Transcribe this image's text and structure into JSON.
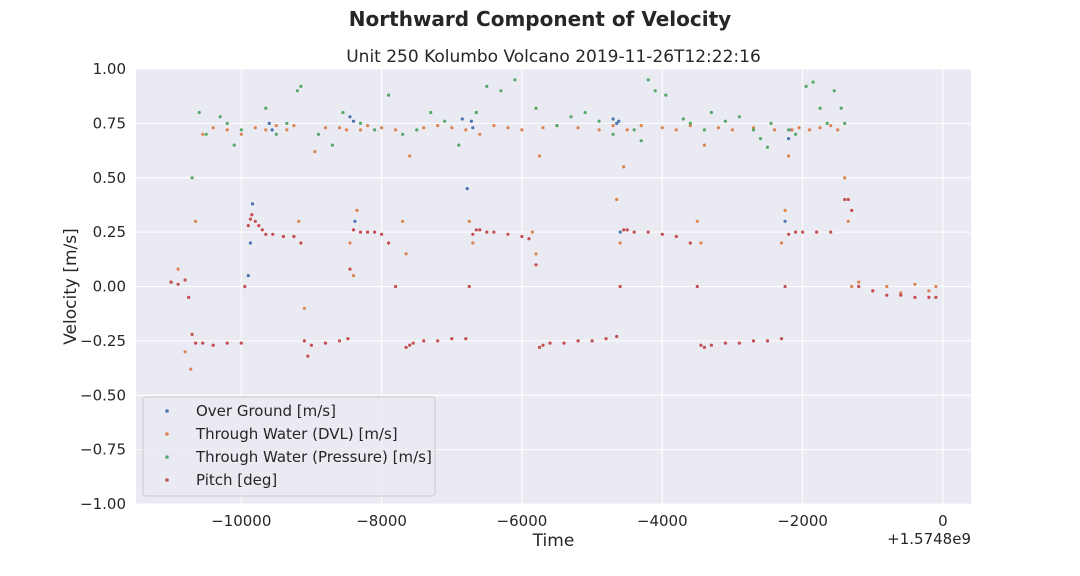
{
  "figure": {
    "suptitle": "Northward Component of Velocity"
  },
  "chart_data": {
    "type": "scatter",
    "title": "Unit 250 Kolumbo Volcano 2019-11-26T12:22:16",
    "xlabel": "Time",
    "ylabel": "Velocity [m/s]",
    "x_offset_label": "+1.5748e9",
    "xlim": [
      -11500,
      400
    ],
    "ylim": [
      -1.0,
      1.0
    ],
    "xticks": [
      -10000,
      -8000,
      -6000,
      -4000,
      -2000,
      0
    ],
    "xtick_labels": [
      "−10000",
      "−8000",
      "−6000",
      "−4000",
      "−2000",
      "0"
    ],
    "yticks": [
      1.0,
      0.75,
      0.5,
      0.25,
      0.0,
      -0.25,
      -0.5,
      -0.75,
      -1.0
    ],
    "ytick_labels": [
      "1.00",
      "0.75",
      "0.50",
      "0.25",
      "0.00",
      "−0.25",
      "−0.50",
      "−0.75",
      "−1.00"
    ],
    "grid": true,
    "legend_position": "lower-left",
    "colors": {
      "background": "#eaeaf2",
      "grid": "#ffffff",
      "over_ground": "#4c72b0",
      "dvl": "#dd8452",
      "pressure": "#55a868",
      "pitch": "#c44e52"
    },
    "series": [
      {
        "name": "Over Ground [m/s]",
        "color": "#4c72b0",
        "x": [
          -9900,
          -9870,
          -9840,
          -9600,
          -9560,
          -8450,
          -8400,
          -8380,
          -6850,
          -6780,
          -6720,
          -6700,
          -4700,
          -4650,
          -4620,
          -4600,
          -2250,
          -2200,
          -2160
        ],
        "y": [
          0.05,
          0.2,
          0.38,
          0.75,
          0.72,
          0.78,
          0.76,
          0.3,
          0.77,
          0.45,
          0.76,
          0.73,
          0.77,
          0.75,
          0.76,
          0.25,
          0.3,
          0.68,
          0.72
        ]
      },
      {
        "name": "Through Water (DVL) [m/s]",
        "color": "#dd8452",
        "x": [
          -11000,
          -10900,
          -10800,
          -10720,
          -10650,
          -10550,
          -10400,
          -10200,
          -10000,
          -9800,
          -9650,
          -9500,
          -9350,
          -9250,
          -9180,
          -9100,
          -8950,
          -8800,
          -8600,
          -8500,
          -8450,
          -8400,
          -8350,
          -8300,
          -8200,
          -8000,
          -7800,
          -7700,
          -7650,
          -7600,
          -7400,
          -7200,
          -7000,
          -6800,
          -6750,
          -6700,
          -6600,
          -6400,
          -6200,
          -6000,
          -5850,
          -5800,
          -5750,
          -5700,
          -5500,
          -5200,
          -4900,
          -4700,
          -4650,
          -4600,
          -4550,
          -4500,
          -4300,
          -4000,
          -3800,
          -3600,
          -3500,
          -3450,
          -3400,
          -3200,
          -3000,
          -2700,
          -2400,
          -2300,
          -2250,
          -2200,
          -2150,
          -2050,
          -1900,
          -1750,
          -1600,
          -1500,
          -1400,
          -1350,
          -1300,
          -1200,
          -1000,
          -800,
          -600,
          -400,
          -200,
          -100
        ],
        "y": [
          0.02,
          0.08,
          -0.3,
          -0.38,
          0.3,
          0.7,
          0.73,
          0.72,
          0.7,
          0.73,
          0.72,
          0.74,
          0.72,
          0.74,
          0.3,
          -0.1,
          0.62,
          0.73,
          0.73,
          0.72,
          0.2,
          0.05,
          0.35,
          0.72,
          0.74,
          0.73,
          0.72,
          0.3,
          0.15,
          0.6,
          0.73,
          0.74,
          0.73,
          0.72,
          0.3,
          0.2,
          0.7,
          0.74,
          0.73,
          0.72,
          0.25,
          0.15,
          0.6,
          0.73,
          0.74,
          0.73,
          0.72,
          0.74,
          0.4,
          0.2,
          0.55,
          0.72,
          0.74,
          0.73,
          0.72,
          0.74,
          0.3,
          0.2,
          0.65,
          0.73,
          0.72,
          0.73,
          0.72,
          0.2,
          0.35,
          0.6,
          0.72,
          0.73,
          0.72,
          0.73,
          0.74,
          0.72,
          0.5,
          0.3,
          0.0,
          0.02,
          -0.02,
          0.0,
          -0.03,
          0.01,
          -0.02,
          0.0
        ]
      },
      {
        "name": "Through Water (Pressure) [m/s]",
        "color": "#55a868",
        "x": [
          -10700,
          -10600,
          -10500,
          -10300,
          -10200,
          -10100,
          -10000,
          -9650,
          -9500,
          -9350,
          -9200,
          -9150,
          -8900,
          -8700,
          -8550,
          -8300,
          -8100,
          -7900,
          -7700,
          -7500,
          -7300,
          -7100,
          -6900,
          -6650,
          -6500,
          -6300,
          -6100,
          -5800,
          -5500,
          -5300,
          -5100,
          -4900,
          -4700,
          -4400,
          -4300,
          -4200,
          -4100,
          -3950,
          -3700,
          -3600,
          -3400,
          -3300,
          -3100,
          -2900,
          -2700,
          -2600,
          -2500,
          -2450,
          -2200,
          -2100,
          -1950,
          -1850,
          -1750,
          -1650,
          -1550,
          -1450,
          -1400
        ],
        "y": [
          0.5,
          0.8,
          0.7,
          0.78,
          0.75,
          0.65,
          0.72,
          0.82,
          0.7,
          0.75,
          0.9,
          0.92,
          0.7,
          0.65,
          0.8,
          0.75,
          0.72,
          0.88,
          0.7,
          0.72,
          0.8,
          0.76,
          0.65,
          0.8,
          0.92,
          0.9,
          0.95,
          0.82,
          0.74,
          0.78,
          0.8,
          0.76,
          0.7,
          0.72,
          0.67,
          0.95,
          0.9,
          0.88,
          0.77,
          0.75,
          0.72,
          0.8,
          0.76,
          0.78,
          0.72,
          0.68,
          0.64,
          0.75,
          0.72,
          0.7,
          0.92,
          0.94,
          0.82,
          0.75,
          0.9,
          0.82,
          0.75
        ]
      },
      {
        "name": "Pitch [deg]",
        "color": "#c44e52",
        "x": [
          -11000,
          -10900,
          -10800,
          -10750,
          -10700,
          -10650,
          -10550,
          -10400,
          -10200,
          -10000,
          -9950,
          -9900,
          -9870,
          -9850,
          -9800,
          -9750,
          -9700,
          -9650,
          -9550,
          -9400,
          -9250,
          -9150,
          -9100,
          -9050,
          -9000,
          -8800,
          -8600,
          -8480,
          -8450,
          -8400,
          -8300,
          -8200,
          -8100,
          -8000,
          -7900,
          -7800,
          -7650,
          -7600,
          -7550,
          -7400,
          -7200,
          -7000,
          -6800,
          -6750,
          -6700,
          -6650,
          -6600,
          -6500,
          -6400,
          -6200,
          -6000,
          -5900,
          -5800,
          -5750,
          -5700,
          -5600,
          -5400,
          -5200,
          -5000,
          -4800,
          -4650,
          -4600,
          -4550,
          -4500,
          -4400,
          -4200,
          -4000,
          -3800,
          -3600,
          -3500,
          -3450,
          -3400,
          -3300,
          -3100,
          -2900,
          -2700,
          -2500,
          -2300,
          -2250,
          -2200,
          -2100,
          -2000,
          -1800,
          -1600,
          -1400,
          -1350,
          -1300,
          -1200,
          -1000,
          -800,
          -600,
          -400,
          -200,
          -100
        ],
        "y": [
          0.02,
          0.01,
          0.03,
          -0.05,
          -0.22,
          -0.26,
          -0.26,
          -0.27,
          -0.26,
          -0.26,
          0.0,
          0.28,
          0.31,
          0.33,
          0.3,
          0.28,
          0.26,
          0.24,
          0.24,
          0.23,
          0.23,
          0.2,
          -0.25,
          -0.32,
          -0.27,
          -0.26,
          -0.25,
          -0.24,
          0.08,
          0.26,
          0.25,
          0.25,
          0.25,
          0.24,
          0.2,
          0.0,
          -0.28,
          -0.27,
          -0.26,
          -0.25,
          -0.25,
          -0.24,
          -0.24,
          0.0,
          0.24,
          0.26,
          0.26,
          0.25,
          0.25,
          0.24,
          0.23,
          0.22,
          0.1,
          -0.28,
          -0.27,
          -0.26,
          -0.26,
          -0.25,
          -0.25,
          -0.24,
          -0.23,
          0.0,
          0.26,
          0.26,
          0.25,
          0.25,
          0.24,
          0.23,
          0.2,
          0.0,
          -0.27,
          -0.28,
          -0.27,
          -0.26,
          -0.26,
          -0.25,
          -0.25,
          -0.24,
          0.0,
          0.24,
          0.25,
          0.25,
          0.25,
          0.25,
          0.4,
          0.4,
          0.35,
          0.0,
          -0.02,
          -0.04,
          -0.04,
          -0.05,
          -0.05,
          -0.05
        ]
      }
    ]
  }
}
